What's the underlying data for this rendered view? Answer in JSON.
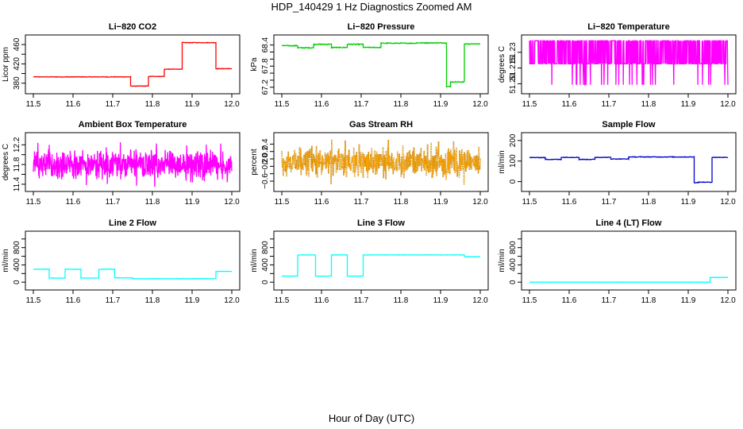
{
  "page": {
    "title": "HDP_140429  1 Hz Diagnostics Zoomed AM",
    "x_axis_title": "Hour of Day (UTC)"
  },
  "chart_data": [
    {
      "type": "line",
      "title": "Li−820 CO2",
      "ylabel": "Licor ppm",
      "color": "#ff0000",
      "xlim": [
        11.5,
        12.0
      ],
      "xticks": [
        "11.5",
        "11.6",
        "11.7",
        "11.8",
        "11.9",
        "12.0"
      ],
      "ylim": [
        368,
        470
      ],
      "yticks": [
        380,
        400,
        420,
        440,
        460
      ],
      "ytick_labels": [
        "380",
        "",
        "420",
        "",
        "460"
      ],
      "noise": 0.6,
      "segments": [
        {
          "x": [
            11.5,
            11.745
          ],
          "y": 393
        },
        {
          "x": [
            11.745,
            11.79
          ],
          "y": 374
        },
        {
          "x": [
            11.79,
            11.83
          ],
          "y": 394
        },
        {
          "x": [
            11.83,
            11.875
          ],
          "y": 409
        },
        {
          "x": [
            11.875,
            11.96
          ],
          "y": 464
        },
        {
          "x": [
            11.96,
            12.0
          ],
          "y": 410
        }
      ]
    },
    {
      "type": "line",
      "title": "Li−820 Pressure",
      "ylabel": "kPa",
      "color": "#00cc00",
      "xlim": [
        11.5,
        12.0
      ],
      "xticks": [
        "11.5",
        "11.6",
        "11.7",
        "11.8",
        "11.9",
        "12.0"
      ],
      "ylim": [
        67.15,
        68.55
      ],
      "yticks": [
        67.2,
        67.4,
        67.6,
        67.8,
        68.0,
        68.2,
        68.4
      ],
      "ytick_labels": [
        "67.2",
        "",
        "",
        "67.8",
        "",
        "",
        "68.4"
      ],
      "noise": 0.012,
      "segments": [
        {
          "x": [
            11.5,
            11.54
          ],
          "y": 68.38
        },
        {
          "x": [
            11.54,
            11.58
          ],
          "y": 68.32
        },
        {
          "x": [
            11.58,
            11.625
          ],
          "y": 68.42
        },
        {
          "x": [
            11.625,
            11.665
          ],
          "y": 68.33
        },
        {
          "x": [
            11.665,
            11.705
          ],
          "y": 68.42
        },
        {
          "x": [
            11.705,
            11.75
          ],
          "y": 68.33
        },
        {
          "x": [
            11.75,
            11.84
          ],
          "y": 68.45
        },
        {
          "x": [
            11.84,
            11.915
          ],
          "y": 68.46
        },
        {
          "x": [
            11.915,
            11.925
          ],
          "y": 67.22
        },
        {
          "x": [
            11.925,
            11.96
          ],
          "y": 67.35
        },
        {
          "x": [
            11.96,
            12.0
          ],
          "y": 68.43
        }
      ]
    },
    {
      "type": "line",
      "title": "Li−820 Temperature",
      "ylabel": "degrees C",
      "color": "#ff00ff",
      "xlim": [
        11.5,
        12.0
      ],
      "xticks": [
        "11.5",
        "11.6",
        "11.7",
        "11.8",
        "11.9",
        "12.0"
      ],
      "ylim": [
        51.195,
        51.242
      ],
      "yticks": [
        51.2,
        51.215,
        51.23
      ],
      "ytick_labels": [
        "51.20",
        "51.215",
        "51.23"
      ],
      "binary": {
        "low": 51.219,
        "high": 51.241,
        "dip": 51.199
      }
    },
    {
      "type": "line",
      "title": "Ambient Box Temperature",
      "ylabel": "degrees C",
      "color": "#ff00ff",
      "xlim": [
        11.5,
        12.0
      ],
      "xticks": [
        "11.5",
        "11.6",
        "11.7",
        "11.8",
        "11.9",
        "12.0"
      ],
      "ylim": [
        11.35,
        12.35
      ],
      "yticks": [
        11.4,
        11.6,
        11.8,
        12.0,
        12.2
      ],
      "ytick_labels": [
        "11.4",
        "",
        "11.8",
        "",
        "12.2"
      ],
      "noise_band": {
        "center": 11.8,
        "amp": 0.22,
        "spike": 0.52
      }
    },
    {
      "type": "scatter",
      "title": "Gas Stream RH",
      "ylabel": "percent",
      "color": "#ffa500",
      "edge_color": "#996600",
      "xlim": [
        11.5,
        12.0
      ],
      "xticks": [
        "11.5",
        "11.6",
        "11.7",
        "11.8",
        "11.9",
        "12.0"
      ],
      "ylim": [
        -0.75,
        0.58
      ],
      "yticks": [
        -0.6,
        -0.4,
        -0.2,
        0.0,
        0.2,
        0.4
      ],
      "ytick_labels": [
        "−0.6",
        "",
        "−0.2",
        "0.0",
        "0.2",
        "0.4"
      ],
      "noise_band": {
        "center": -0.1,
        "amp": 0.3,
        "spike": 0.62
      }
    },
    {
      "type": "line",
      "title": "Sample Flow",
      "ylabel": "ml/min",
      "color": "#0000cc",
      "xlim": [
        11.5,
        12.0
      ],
      "xticks": [
        "11.5",
        "11.6",
        "11.7",
        "11.8",
        "11.9",
        "12.0"
      ],
      "ylim": [
        -25,
        215
      ],
      "yticks": [
        0,
        100,
        200
      ],
      "ytick_labels": [
        "0",
        "100",
        "200"
      ],
      "noise": 1.5,
      "segments": [
        {
          "x": [
            11.5,
            11.54
          ],
          "y": 117
        },
        {
          "x": [
            11.54,
            11.58
          ],
          "y": 108
        },
        {
          "x": [
            11.58,
            11.625
          ],
          "y": 118
        },
        {
          "x": [
            11.625,
            11.665
          ],
          "y": 108
        },
        {
          "x": [
            11.665,
            11.705
          ],
          "y": 118
        },
        {
          "x": [
            11.705,
            11.75
          ],
          "y": 110
        },
        {
          "x": [
            11.75,
            11.915
          ],
          "y": 120
        },
        {
          "x": [
            11.915,
            11.925
          ],
          "y": -5
        },
        {
          "x": [
            11.925,
            11.96
          ],
          "y": -3
        },
        {
          "x": [
            11.96,
            12.0
          ],
          "y": 118
        }
      ]
    },
    {
      "type": "line",
      "title": "Line 2 Flow",
      "ylabel": "ml/min",
      "color": "#00ffff",
      "xlim": [
        11.5,
        12.0
      ],
      "xticks": [
        "11.5",
        "11.6",
        "11.7",
        "11.8",
        "11.9",
        "12.0"
      ],
      "ylim": [
        -70,
        1070
      ],
      "yticks": [
        0,
        200,
        400,
        600,
        800,
        1000
      ],
      "ytick_labels": [
        "0",
        "",
        "400",
        "",
        "800",
        ""
      ],
      "noise": 4,
      "segments": [
        {
          "x": [
            11.5,
            11.54
          ],
          "y": 300
        },
        {
          "x": [
            11.54,
            11.58
          ],
          "y": 95
        },
        {
          "x": [
            11.58,
            11.62
          ],
          "y": 300
        },
        {
          "x": [
            11.62,
            11.665
          ],
          "y": 95
        },
        {
          "x": [
            11.665,
            11.705
          ],
          "y": 300
        },
        {
          "x": [
            11.705,
            11.75
          ],
          "y": 100
        },
        {
          "x": [
            11.75,
            11.96
          ],
          "y": 80
        },
        {
          "x": [
            11.96,
            12.0
          ],
          "y": 250
        }
      ]
    },
    {
      "type": "line",
      "title": "Line 3 Flow",
      "ylabel": "ml/min",
      "color": "#00ffff",
      "xlim": [
        11.5,
        12.0
      ],
      "xticks": [
        "11.5",
        "11.6",
        "11.7",
        "11.8",
        "11.9",
        "12.0"
      ],
      "ylim": [
        -70,
        1070
      ],
      "yticks": [
        0,
        200,
        400,
        600,
        800,
        1000
      ],
      "ytick_labels": [
        "0",
        "",
        "400",
        "",
        "800",
        ""
      ],
      "noise": 4,
      "segments": [
        {
          "x": [
            11.5,
            11.54
          ],
          "y": 140
        },
        {
          "x": [
            11.54,
            11.585
          ],
          "y": 630
        },
        {
          "x": [
            11.585,
            11.625
          ],
          "y": 140
        },
        {
          "x": [
            11.625,
            11.665
          ],
          "y": 630
        },
        {
          "x": [
            11.665,
            11.705
          ],
          "y": 140
        },
        {
          "x": [
            11.705,
            11.96
          ],
          "y": 630
        },
        {
          "x": [
            11.96,
            12.0
          ],
          "y": 590
        }
      ]
    },
    {
      "type": "line",
      "title": "Line 4 (LT) Flow",
      "ylabel": "ml/min",
      "color": "#00ffff",
      "xlim": [
        11.5,
        12.0
      ],
      "xticks": [
        "11.5",
        "11.6",
        "11.7",
        "11.8",
        "11.9",
        "12.0"
      ],
      "ylim": [
        -70,
        1070
      ],
      "yticks": [
        0,
        200,
        400,
        600,
        800,
        1000
      ],
      "ytick_labels": [
        "0",
        "",
        "400",
        "",
        "800",
        ""
      ],
      "noise": 2,
      "segments": [
        {
          "x": [
            11.5,
            11.955
          ],
          "y": 0
        },
        {
          "x": [
            11.955,
            12.0
          ],
          "y": 110
        }
      ]
    }
  ]
}
